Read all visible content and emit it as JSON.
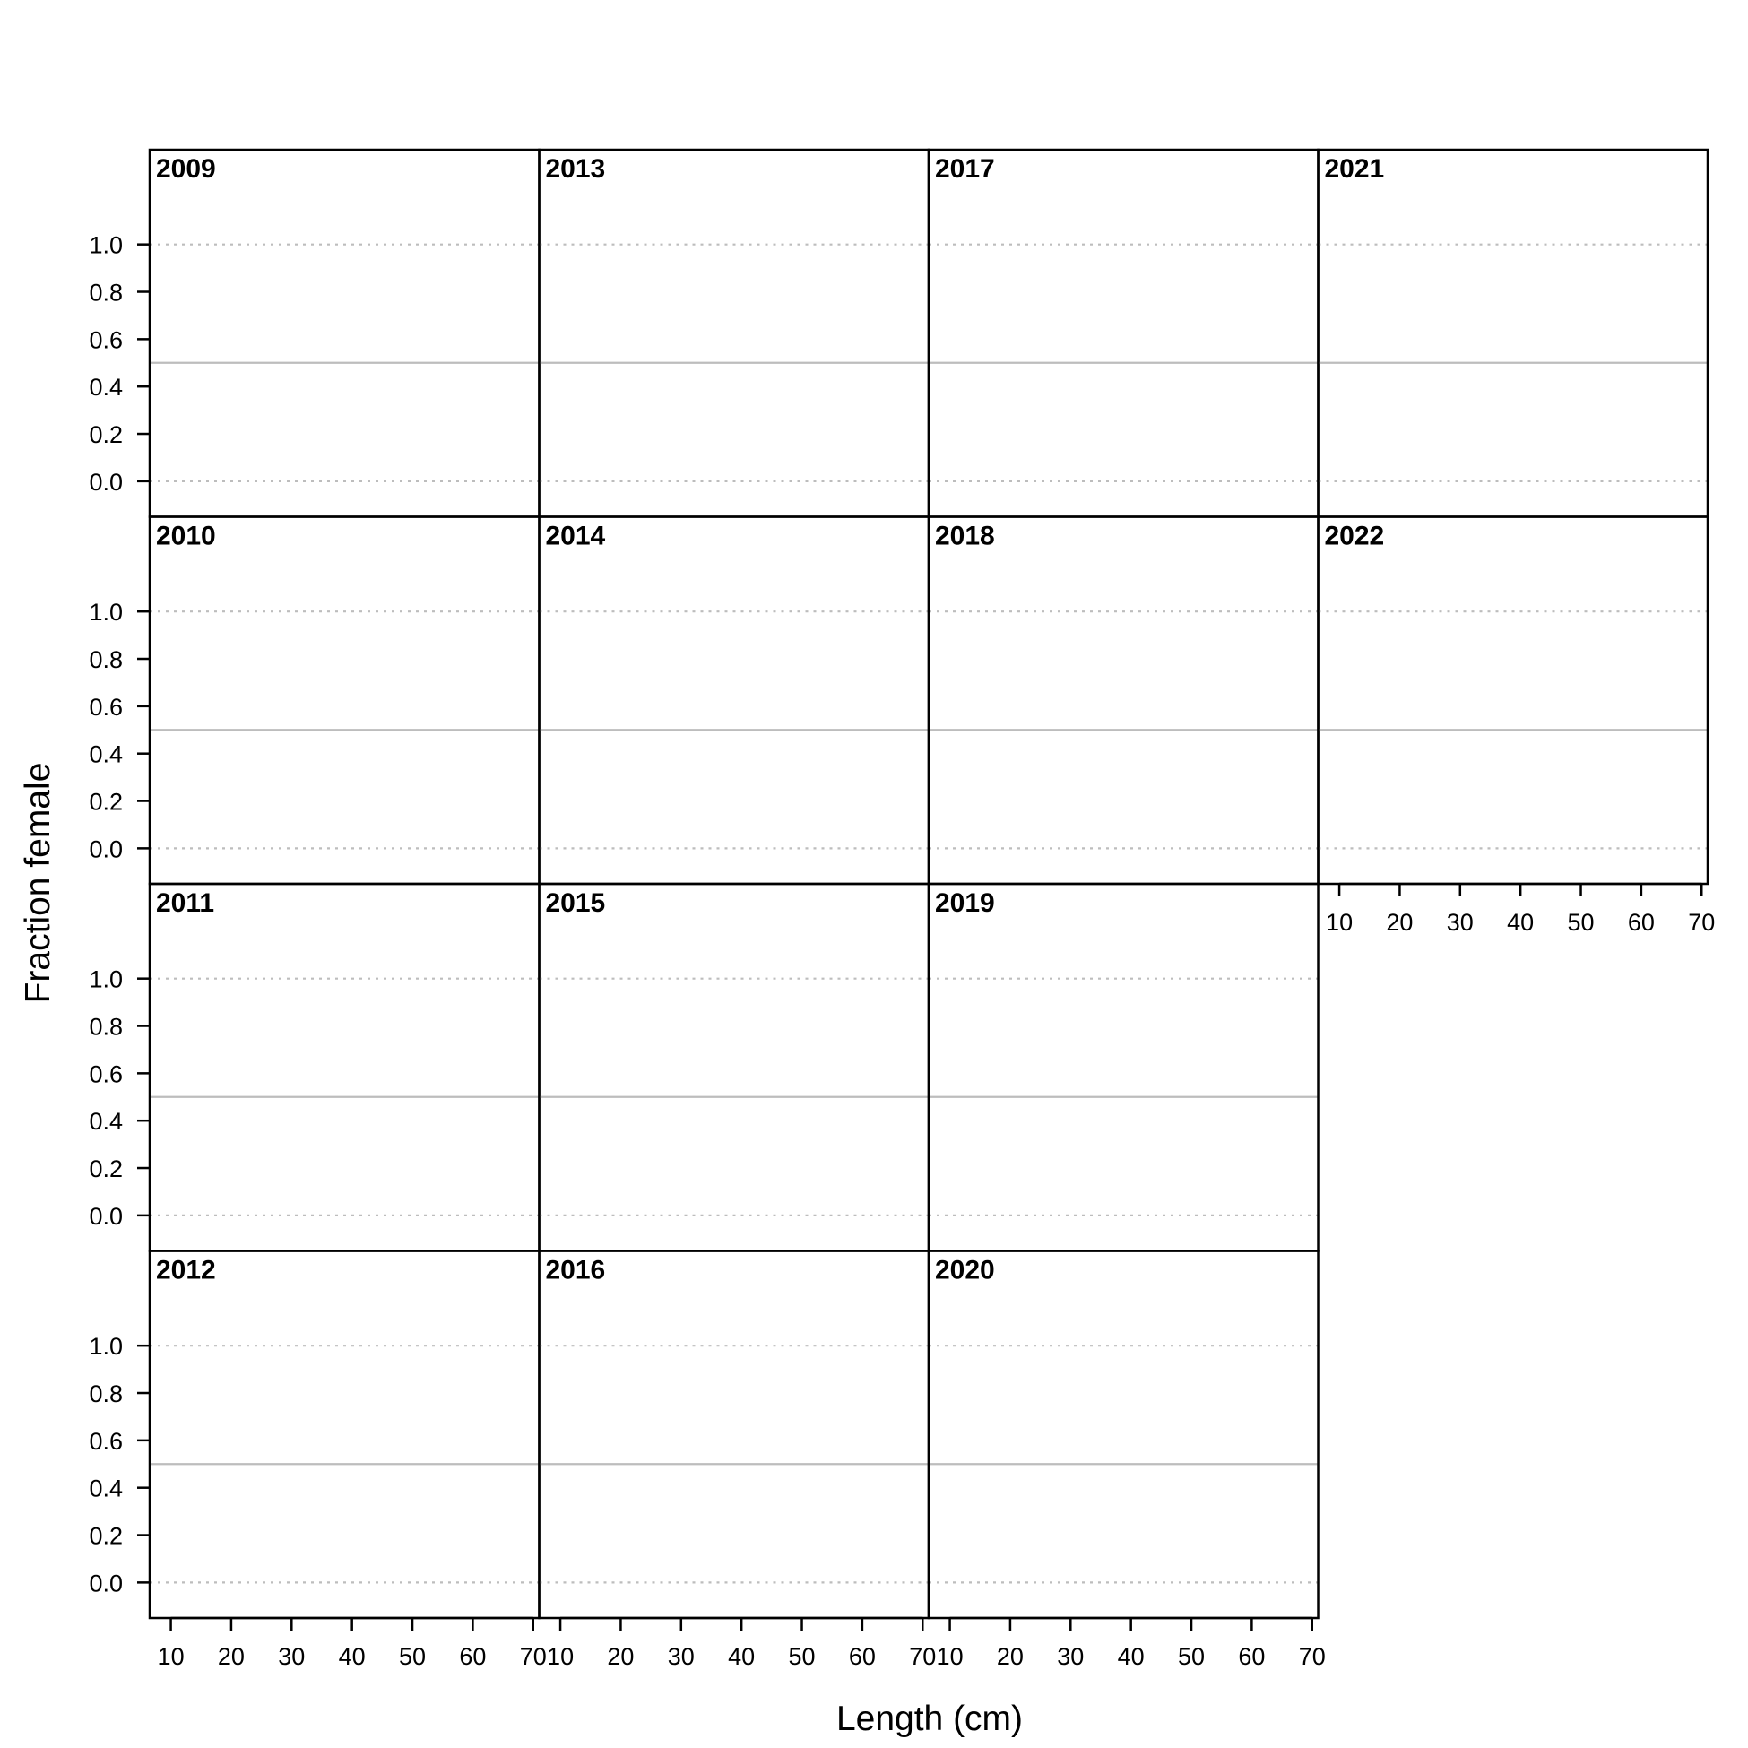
{
  "chart_data": {
    "type": "line",
    "xlabel": "Length (cm)",
    "ylabel": "Fraction female",
    "xlim": [
      6.5,
      71
    ],
    "ylim": [
      -0.15,
      1.4
    ],
    "x_ticks": [
      10,
      20,
      30,
      40,
      50,
      60,
      70
    ],
    "y_ticks": [
      "0.0",
      "0.2",
      "0.4",
      "0.6",
      "0.8",
      "1.0"
    ],
    "reference_lines": {
      "dotted": [
        0.0,
        1.0
      ],
      "solid": [
        0.5
      ]
    },
    "layout": "4 columns by 4 rows, panels filled column by column",
    "panels": [
      {
        "year": "2009",
        "col": 0,
        "row": 0,
        "series": []
      },
      {
        "year": "2010",
        "col": 0,
        "row": 1,
        "series": []
      },
      {
        "year": "2011",
        "col": 0,
        "row": 2,
        "series": []
      },
      {
        "year": "2012",
        "col": 0,
        "row": 3,
        "series": []
      },
      {
        "year": "2013",
        "col": 1,
        "row": 0,
        "series": []
      },
      {
        "year": "2014",
        "col": 1,
        "row": 1,
        "series": []
      },
      {
        "year": "2015",
        "col": 1,
        "row": 2,
        "series": []
      },
      {
        "year": "2016",
        "col": 1,
        "row": 3,
        "series": []
      },
      {
        "year": "2017",
        "col": 2,
        "row": 0,
        "series": []
      },
      {
        "year": "2018",
        "col": 2,
        "row": 1,
        "series": []
      },
      {
        "year": "2019",
        "col": 2,
        "row": 2,
        "series": []
      },
      {
        "year": "2020",
        "col": 2,
        "row": 3,
        "series": []
      },
      {
        "year": "2021",
        "col": 3,
        "row": 0,
        "series": []
      },
      {
        "year": "2022",
        "col": 3,
        "row": 1,
        "series": []
      }
    ],
    "colors": {
      "frame": "#000000",
      "reference": "#bdbdbd"
    }
  }
}
